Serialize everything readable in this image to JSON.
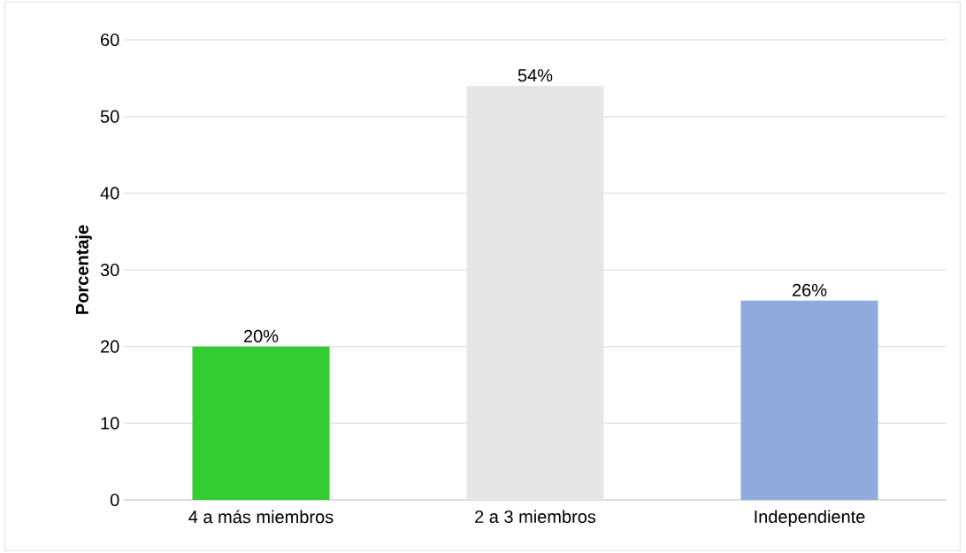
{
  "chart_data": {
    "type": "bar",
    "ylabel": "Porcentaje",
    "categories": [
      "4 a más miembros",
      "2 a 3 miembros",
      "Independiente"
    ],
    "values": [
      20,
      54,
      26
    ],
    "colors": [
      "#33cc33",
      "#e6e6e6",
      "#8faadc"
    ],
    "value_labels": [
      "20%",
      "54%",
      "26%"
    ],
    "ylim": [
      0,
      60
    ],
    "yticks": [
      0,
      10,
      20,
      30,
      40,
      50,
      60
    ],
    "grid": "y"
  }
}
